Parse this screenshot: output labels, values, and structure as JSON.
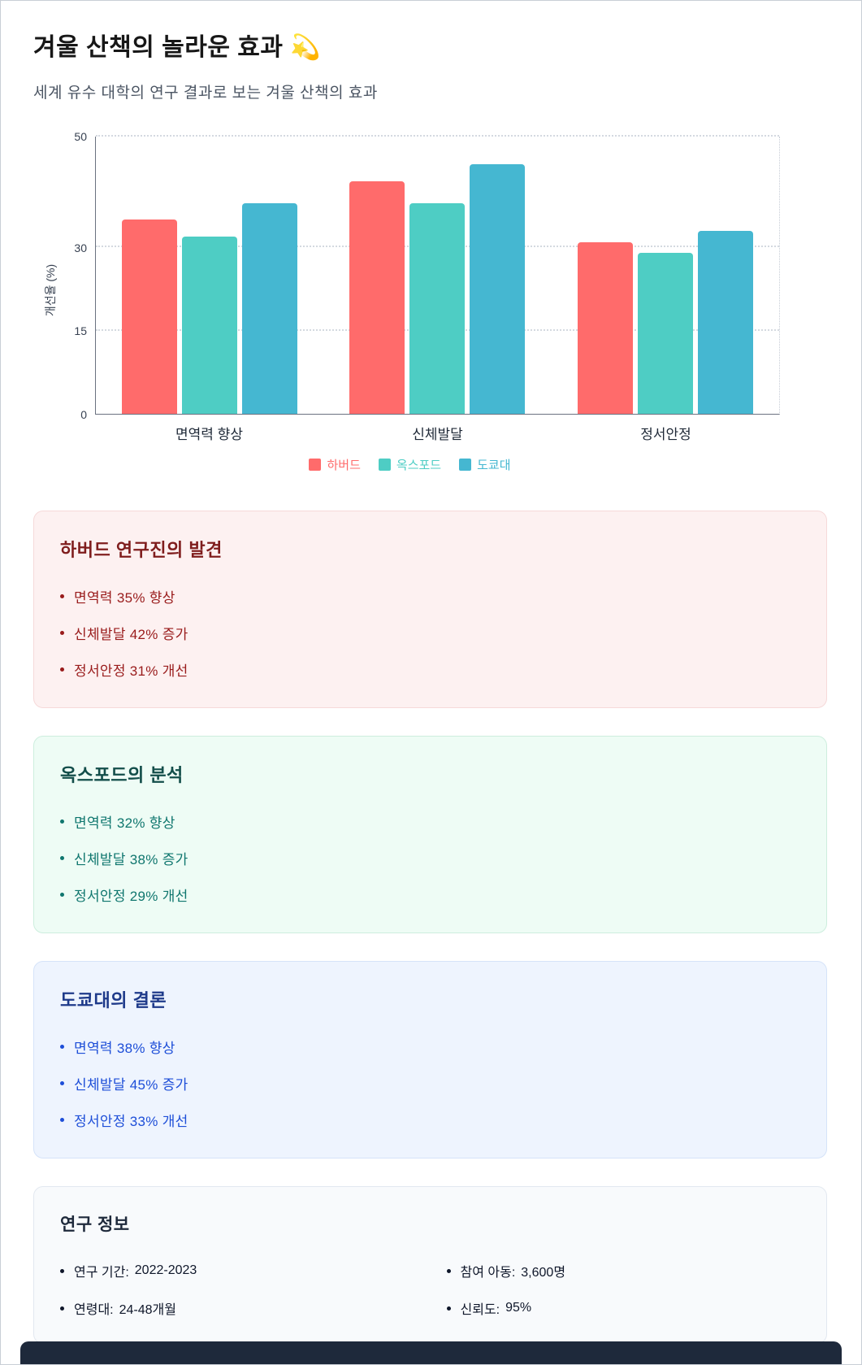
{
  "page": {
    "title": "겨울 산책의 놀라운 효과 💫",
    "subtitle": "세계 유수 대학의 연구 결과로 보는 겨울 산책의 효과",
    "footer_color": "#1e293b"
  },
  "chart_data": {
    "type": "bar",
    "categories": [
      "면역력 향상",
      "신체발달",
      "정서안정"
    ],
    "series": [
      {
        "name": "하버드",
        "color": "#FF6B6B",
        "values": [
          35,
          42,
          31
        ]
      },
      {
        "name": "옥스포드",
        "color": "#4ECDC4",
        "values": [
          32,
          38,
          29
        ]
      },
      {
        "name": "도쿄대",
        "color": "#45B7D1",
        "values": [
          38,
          45,
          33
        ]
      }
    ],
    "title": "",
    "xlabel": "",
    "ylabel": "개선율 (%)",
    "yticks": [
      0,
      15,
      30,
      50
    ],
    "ylim": [
      0,
      50
    ],
    "grid": "dotted-horizontal",
    "legend_position": "bottom"
  },
  "cards": [
    {
      "id": "harvard",
      "title": "하버드 연구진의 발견",
      "accent_color": "#991b1b",
      "background": "#fdf1f1",
      "items": [
        "면역력 35% 향상",
        "신체발달 42% 증가",
        "정서안정 31% 개선"
      ]
    },
    {
      "id": "oxford",
      "title": "옥스포드의 분석",
      "accent_color": "#0f766e",
      "background": "#eefcf5",
      "items": [
        "면역력 32% 향상",
        "신체발달 38% 증가",
        "정서안정 29% 개선"
      ]
    },
    {
      "id": "tokyo",
      "title": "도쿄대의 결론",
      "accent_color": "#1d4ed8",
      "background": "#eef4fe",
      "items": [
        "면역력 38% 향상",
        "신체발달 45% 증가",
        "정서안정 33% 개선"
      ]
    }
  ],
  "info": {
    "title": "연구 정보",
    "items": [
      {
        "label": "연구 기간:",
        "value": "2022-2023"
      },
      {
        "label": "참여 아동:",
        "value": "3,600명"
      },
      {
        "label": "연령대:",
        "value": "24-48개월"
      },
      {
        "label": "신뢰도:",
        "value": "95%"
      }
    ]
  }
}
